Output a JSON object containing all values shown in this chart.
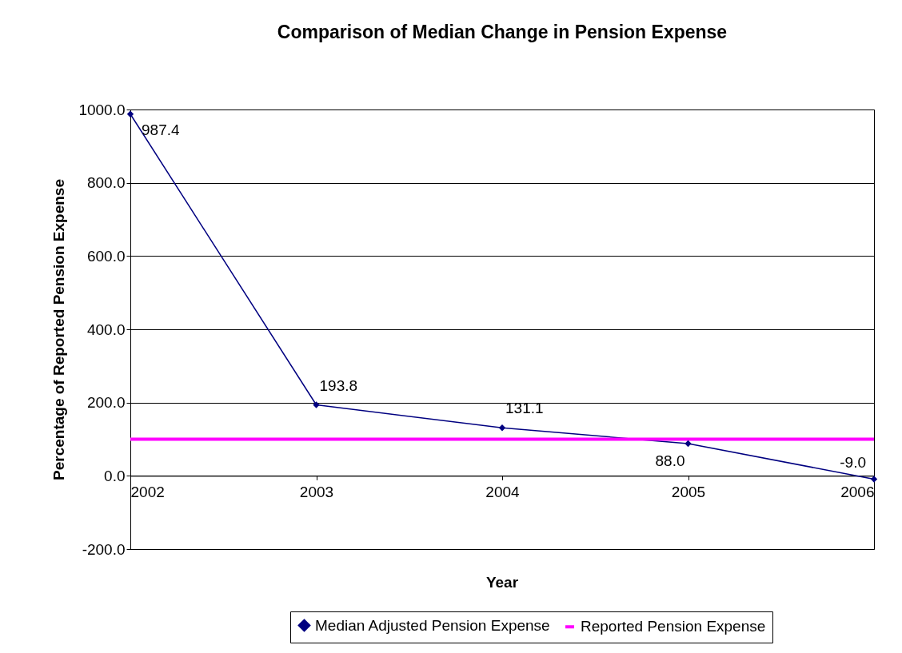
{
  "chart_data": {
    "type": "line",
    "title": "Comparison of Median Change in Pension Expense",
    "xlabel": "Year",
    "ylabel": "Percentage of Reported Pension Expense",
    "categories": [
      "2002",
      "2003",
      "2004",
      "2005",
      "2006"
    ],
    "series": [
      {
        "name": "Median Adjusted Pension Expense",
        "color": "#000080",
        "values": [
          987.4,
          193.8,
          131.1,
          88.0,
          -9.0
        ],
        "marker": "diamond",
        "value_labels": [
          "987.4",
          "193.8",
          "131.1",
          "88.0",
          "-9.0"
        ]
      },
      {
        "name": "Reported Pension Expense",
        "color": "#ff00ff",
        "values": [
          100,
          100,
          100,
          100,
          100
        ],
        "marker": "none"
      }
    ],
    "ylim": [
      -200,
      1000
    ],
    "yticks": [
      {
        "value": -200,
        "label": "-200.0"
      },
      {
        "value": 0,
        "label": "0.0"
      },
      {
        "value": 200,
        "label": "200.0"
      },
      {
        "value": 400,
        "label": "400.0"
      },
      {
        "value": 600,
        "label": "600.0"
      },
      {
        "value": 800,
        "label": "800.0"
      },
      {
        "value": 1000,
        "label": "1000.0"
      }
    ],
    "grid": "y",
    "legend": "bottom"
  }
}
